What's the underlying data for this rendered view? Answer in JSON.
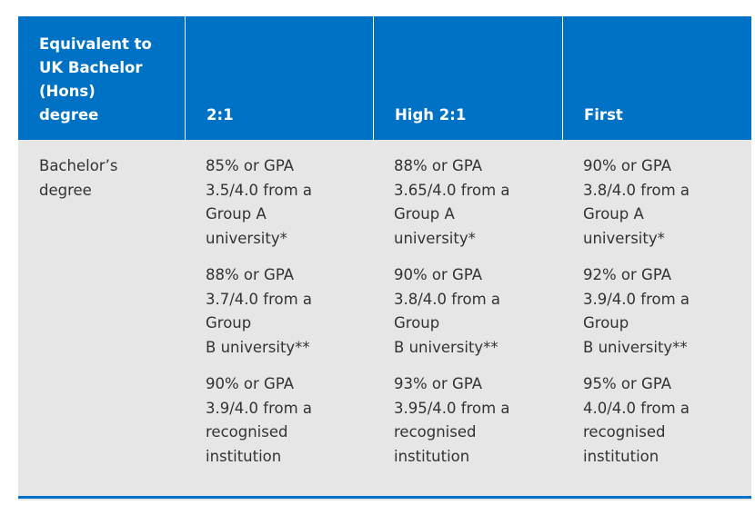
{
  "colors": {
    "header_bg": "#0072c6",
    "body_bg": "#e6e6e6",
    "text": "#333333"
  },
  "header": {
    "col1": "Equivalent to\nUK Bachelor\n(Hons)\ndegree",
    "col2": "2:1",
    "col3": "High 2:1",
    "col4": "First"
  },
  "row": {
    "label": "Bachelor’s\ndegree",
    "col2": [
      "85% or GPA\n3.5/4.0 from a\nGroup A\nuniversity*",
      "88% or GPA\n3.7/4.0 from a\nGroup\nB university**",
      "90% or GPA\n3.9/4.0 from a\nrecognised\ninstitution"
    ],
    "col3": [
      "88% or GPA\n3.65/4.0 from a\nGroup A\nuniversity*",
      "90% or GPA\n3.8/4.0 from a\nGroup\nB university**",
      "93% or GPA\n3.95/4.0 from a\nrecognised\ninstitution"
    ],
    "col4": [
      "90% or GPA\n3.8/4.0 from a\nGroup A\nuniversity*",
      "92% or GPA\n3.9/4.0 from a\nGroup\nB university**",
      "95% or GPA\n4.0/4.0 from a\nrecognised\ninstitution"
    ]
  }
}
